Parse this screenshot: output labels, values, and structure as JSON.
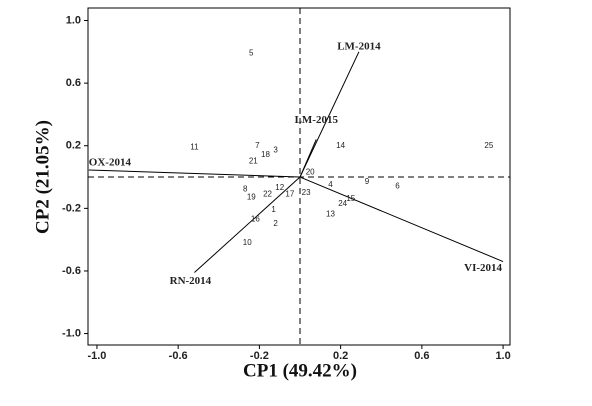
{
  "chart_data": {
    "type": "biplot",
    "xlabel": "CP1 (49.42%)",
    "ylabel": "CP2 (21.05%)",
    "xlim": [
      -1.044,
      1.034
    ],
    "ylim": [
      -1.073,
      1.08
    ],
    "xticks": [
      {
        "value": -1.0,
        "label": "-1.0"
      },
      -0.6,
      -0.2,
      0.2,
      0.6,
      {
        "value": 1.0,
        "label": "1.0"
      }
    ],
    "yticks": [
      {
        "value": -1.0,
        "label": "-1.0"
      },
      -0.6,
      -0.2,
      0.2,
      0.6,
      {
        "value": 1.0,
        "label": "1.0"
      }
    ],
    "point_labels": [
      "1",
      "2",
      "3",
      "4",
      "5",
      "6",
      "7",
      "8",
      "9",
      "10",
      "11",
      "12",
      "13",
      "14",
      "15",
      "16",
      "17",
      "18",
      "19",
      "20",
      "21",
      "22",
      "23",
      "24",
      "25"
    ],
    "x": [
      -0.13,
      -0.12,
      -0.12,
      0.15,
      -0.24,
      0.48,
      -0.21,
      -0.27,
      0.33,
      -0.26,
      -0.52,
      -0.1,
      0.15,
      0.2,
      0.25,
      -0.22,
      -0.05,
      -0.17,
      -0.24,
      0.05,
      -0.23,
      -0.16,
      0.03,
      0.21,
      0.93
    ],
    "y": [
      -0.21,
      -0.3,
      0.17,
      -0.05,
      0.79,
      -0.06,
      0.2,
      -0.08,
      -0.03,
      -0.42,
      0.19,
      -0.07,
      -0.24,
      0.2,
      -0.14,
      -0.27,
      -0.11,
      0.14,
      -0.13,
      0.03,
      0.1,
      -0.11,
      -0.1,
      -0.17,
      0.2
    ],
    "vectors": [
      {
        "name": "LM-2014",
        "x": 0.29,
        "y": 0.8
      },
      {
        "name": "LM-2015",
        "x": 0.08,
        "y": 0.24
      },
      {
        "name": "OX-2014",
        "x": -1.04,
        "y": 0.045
      },
      {
        "name": "RN-2014",
        "x": -0.52,
        "y": -0.61
      },
      {
        "name": "VI-2014",
        "x": 1.0,
        "y": -0.54
      }
    ]
  }
}
